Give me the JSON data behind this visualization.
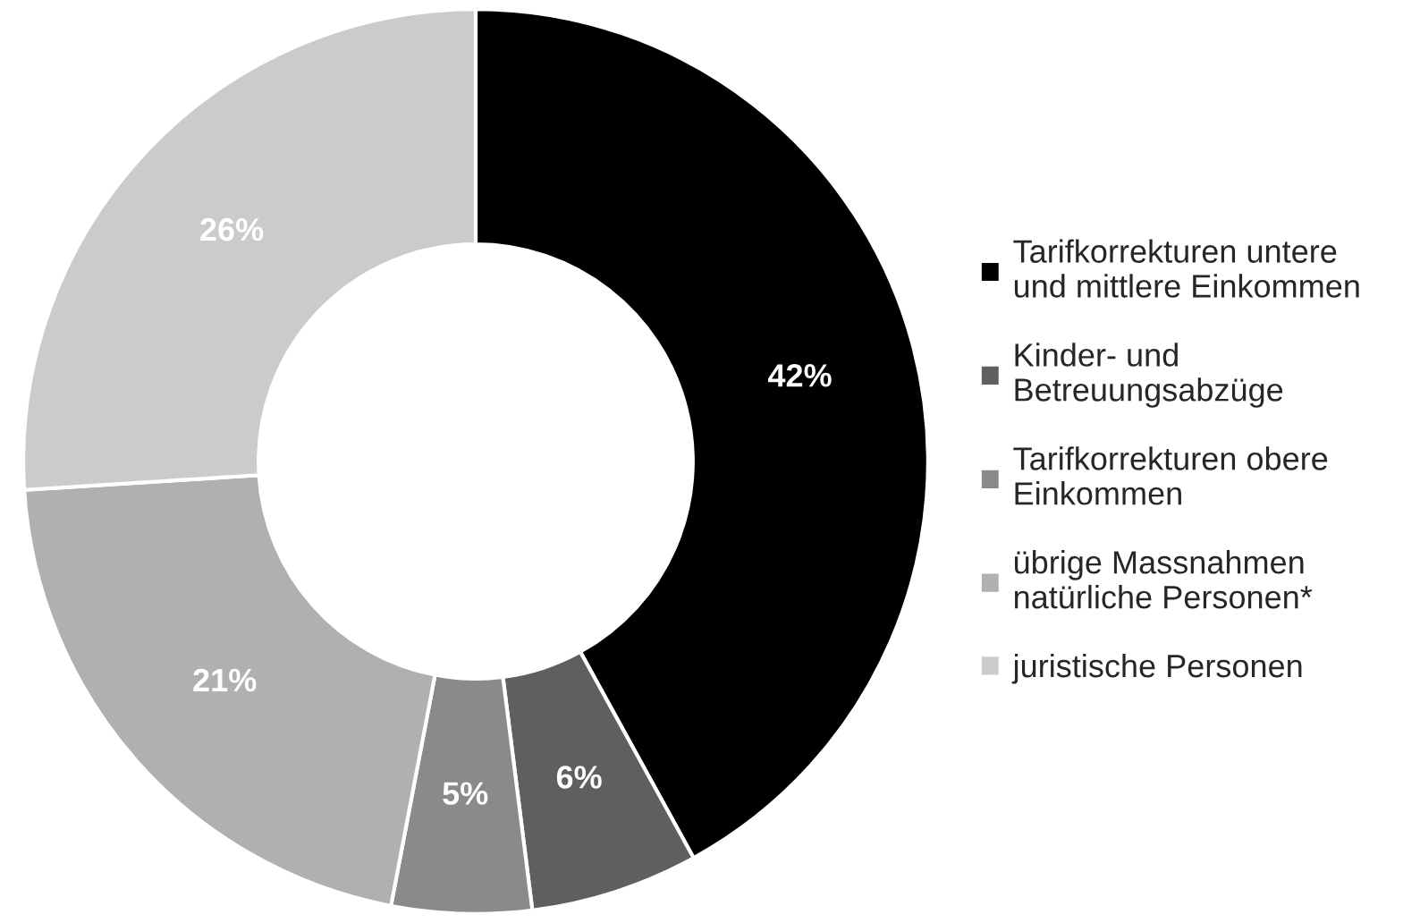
{
  "chart_data": {
    "type": "donut",
    "categories": [
      "Tarifkorrekturen untere\nund mittlere Einkommen",
      "Kinder- und\nBetreuungsabzüge",
      "Tarifkorrekturen obere\nEinkommen",
      "übrige Massnahmen\nnatürliche Personen*",
      "juristische Personen"
    ],
    "values": [
      42,
      6,
      5,
      21,
      26
    ],
    "colors": [
      "#000000",
      "#5f5f5f",
      "#8a8a8a",
      "#b0b0b0",
      "#cbcbcb"
    ],
    "value_labels": [
      "42%",
      "6%",
      "5%",
      "21%",
      "26%"
    ],
    "legend": "right"
  }
}
